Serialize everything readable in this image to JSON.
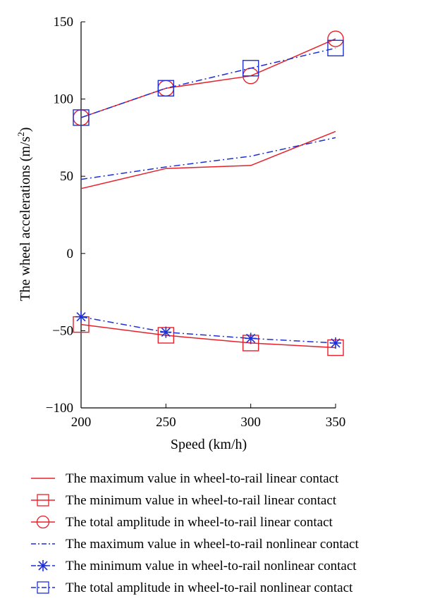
{
  "chart_data": {
    "type": "line",
    "xlabel": "Speed (km/h)",
    "ylabel": "The wheel accelerations (m/s",
    "ylabel_sup": "2",
    "ylabel_end": ")",
    "xlim": [
      200,
      350
    ],
    "ylim": [
      -100,
      150
    ],
    "x_ticks": [
      200,
      250,
      300,
      350
    ],
    "y_ticks": [
      -100,
      -50,
      0,
      50,
      100,
      150
    ],
    "y_tick_labels": [
      "−100",
      "−50",
      "0",
      "50",
      "100",
      "150"
    ],
    "x": [
      200,
      250,
      300,
      350
    ],
    "grid": false,
    "legend_position": "bottom",
    "series": [
      {
        "name": "The maximum value in wheel-to-rail linear contact",
        "values": [
          42,
          55,
          57,
          79
        ],
        "color": "#e8202a",
        "dash": "solid",
        "marker": "none"
      },
      {
        "name": "The minimum value in wheel-to-rail linear contact",
        "values": [
          -46,
          -53,
          -58,
          -61
        ],
        "color": "#e8202a",
        "dash": "solid",
        "marker": "square"
      },
      {
        "name": "The total amplitude in wheel-to-rail linear contact",
        "values": [
          88,
          107,
          115,
          139
        ],
        "color": "#e8202a",
        "dash": "solid",
        "marker": "circle"
      },
      {
        "name": "The maximum value in wheel-to-rail nonlinear contact",
        "values": [
          48,
          56,
          63,
          75
        ],
        "color": "#1c2fd8",
        "dash": "dashdot",
        "marker": "none"
      },
      {
        "name": "The minimum value in wheel-to-rail nonlinear contact",
        "values": [
          -41,
          -51,
          -55,
          -58
        ],
        "color": "#1c2fd8",
        "dash": "dashdot",
        "marker": "star"
      },
      {
        "name": "The total amplitude in wheel-to-rail nonlinear contact",
        "values": [
          88,
          107,
          120,
          133
        ],
        "color": "#1c2fd8",
        "dash": "dashdot",
        "marker": "square"
      }
    ]
  }
}
